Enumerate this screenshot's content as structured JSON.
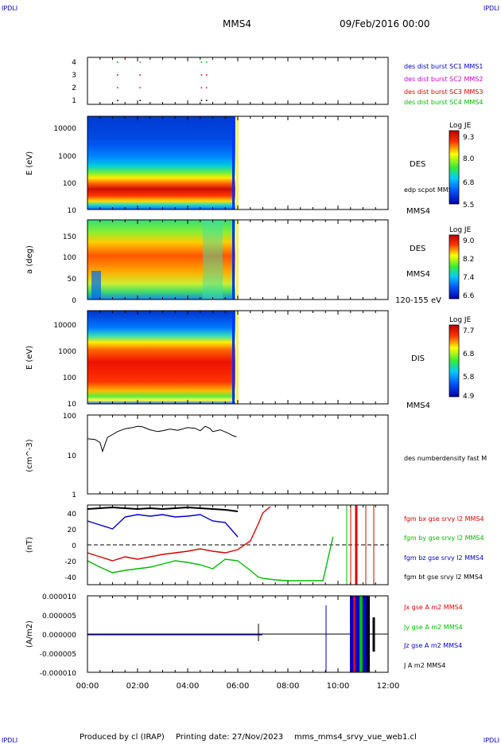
{
  "header": {
    "corner_left": "IPDLI",
    "corner_right": "IPDLI",
    "spacecraft": "MMS4",
    "date": "09/Feb/2016 00:00"
  },
  "footer": {
    "produced_by": "Produced by cl (IRAP)",
    "printing_date": "Printing date: 27/Nov/2023",
    "script_name": "mms_mms4_srvy_vue_web1.cl",
    "corner_left": "IPDLI",
    "corner_right": "IPDLI"
  },
  "colors": {
    "blue": "#0000cc",
    "magenta": "#cc00cc",
    "red": "#dd0000",
    "green": "#00bb00",
    "black": "#000000"
  },
  "chart_data": {
    "type": "multi-panel",
    "x_axis": {
      "range": [
        "00:00",
        "12:00"
      ],
      "tick_labels": [
        "00:00",
        "02:00",
        "04:00",
        "06:00",
        "08:00",
        "10:00",
        "12:00"
      ]
    },
    "panels": [
      {
        "id": "burst",
        "type": "scatter",
        "ylim": [
          0.6,
          4.4
        ],
        "y_ticks": [
          "1",
          "2",
          "3",
          "4"
        ],
        "legend": [
          {
            "name": "des dist burst SC1 MMS1",
            "color": "#0000cc"
          },
          {
            "name": "des dist burst SC2 MMS2",
            "color": "#cc00cc"
          },
          {
            "name": "des dist burst SC3 MMS3",
            "color": "#dd0000"
          },
          {
            "name": "des dist burst SC4 MMS4",
            "color": "#00bb00"
          }
        ],
        "points_hours": [
          1.2,
          2.1,
          4.55,
          4.75
        ]
      },
      {
        "id": "des_energy",
        "type": "heatmap",
        "ylabel": "E (eV)",
        "y_scale": "log",
        "ylim": [
          10,
          30000
        ],
        "y_ticks": [
          "10",
          "100",
          "1000",
          "10000"
        ],
        "side_labels": [
          "DES",
          "edp scpot MMS4",
          "MMS4"
        ],
        "colorbar": {
          "title": "Log JE",
          "ticks": [
            "9.3",
            "8.0",
            "6.8",
            "5.5"
          ],
          "range": [
            5.5,
            9.3
          ]
        }
      },
      {
        "id": "des_pitch",
        "type": "heatmap",
        "ylabel": "a (deg)",
        "ylim": [
          0,
          180
        ],
        "y_ticks": [
          "0",
          "50",
          "100",
          "150"
        ],
        "side_labels": [
          "DES",
          "MMS4",
          "120-155 eV"
        ],
        "colorbar": {
          "title": "Log JE",
          "ticks": [
            "9.0",
            "8.2",
            "7.4",
            "6.6"
          ],
          "range": [
            6.6,
            9.0
          ]
        }
      },
      {
        "id": "dis_energy",
        "type": "heatmap",
        "ylabel": "E (eV)",
        "y_scale": "log",
        "ylim": [
          10,
          30000
        ],
        "y_ticks": [
          "10",
          "100",
          "1000",
          "10000"
        ],
        "side_labels": [
          "DIS",
          "MMS4"
        ],
        "colorbar": {
          "title": "Log JE",
          "ticks": [
            "7.7",
            "6.8",
            "5.8",
            "4.9"
          ],
          "range": [
            4.9,
            7.7
          ]
        }
      },
      {
        "id": "density",
        "type": "line",
        "ylabel": "(cm^-3)",
        "y_scale": "log",
        "ylim": [
          1,
          100
        ],
        "y_ticks": [
          "1",
          "10",
          "100"
        ],
        "legend": [
          {
            "name": "des numberdensity fast M",
            "color": "#000000"
          }
        ],
        "series": [
          {
            "x": [
              0.0,
              0.3,
              0.5,
              0.6,
              0.8,
              1.0,
              1.2,
              1.5,
              1.8,
              2.0,
              2.2,
              2.5,
              2.8,
              3.0,
              3.3,
              3.6,
              4.0,
              4.3,
              4.5,
              4.7,
              4.9,
              5.0,
              5.3,
              5.6,
              5.8,
              5.95
            ],
            "y": [
              25,
              24,
              20,
              12,
              27,
              32,
              38,
              45,
              48,
              52,
              50,
              42,
              38,
              40,
              44,
              41,
              48,
              46,
              40,
              52,
              45,
              38,
              42,
              35,
              30,
              28
            ]
          }
        ]
      },
      {
        "id": "bfield",
        "type": "line",
        "ylabel": "(nT)",
        "ylim": [
          -50,
          50
        ],
        "y_ticks": [
          "-40",
          "-20",
          "0",
          "20",
          "40"
        ],
        "legend": [
          {
            "name": "fgm bx gse srvy l2 MMS4",
            "color": "#dd0000"
          },
          {
            "name": "fgm by gse srvy l2 MMS4",
            "color": "#00bb00"
          },
          {
            "name": "fgm bz gse srvy l2 MMS4",
            "color": "#0000cc"
          },
          {
            "name": "fgm bt gse srvy l2 MMS4",
            "color": "#000000"
          }
        ],
        "series": [
          {
            "name": "bx",
            "x": [
              0,
              0.5,
              1,
              1.5,
              2,
              2.5,
              3,
              3.5,
              4,
              4.5,
              5,
              5.5,
              6,
              6.5,
              6.8,
              7.0,
              7.3
            ],
            "y": [
              -10,
              -15,
              -20,
              -15,
              -18,
              -15,
              -12,
              -10,
              -8,
              -5,
              -8,
              -10,
              -6,
              5,
              25,
              40,
              48
            ]
          },
          {
            "name": "by",
            "x": [
              0,
              0.5,
              1,
              1.5,
              2,
              2.5,
              3,
              3.5,
              4,
              4.5,
              5,
              5.5,
              6,
              6.5,
              6.8,
              7.0,
              7.5,
              8.0,
              9.4,
              9.8
            ],
            "y": [
              -20,
              -28,
              -35,
              -32,
              -30,
              -28,
              -24,
              -20,
              -22,
              -25,
              -30,
              -18,
              -20,
              -32,
              -40,
              -42,
              -44,
              -45,
              -45,
              10
            ]
          },
          {
            "name": "bz",
            "x": [
              0,
              0.5,
              1,
              1.5,
              2,
              2.5,
              3,
              3.5,
              4,
              4.5,
              5,
              5.5,
              6
            ],
            "y": [
              30,
              25,
              20,
              35,
              38,
              36,
              38,
              35,
              36,
              38,
              30,
              28,
              10
            ]
          },
          {
            "name": "bt",
            "x": [
              0,
              0.5,
              1,
              1.5,
              2,
              2.5,
              3,
              3.5,
              4,
              4.5,
              5,
              5.5,
              6
            ],
            "y": [
              45,
              46,
              47,
              46,
              45,
              46,
              45,
              46,
              47,
              46,
              45,
              44,
              42
            ]
          }
        ]
      },
      {
        "id": "current",
        "type": "line",
        "ylabel": "(A/m2)",
        "ylim": [
          -1e-05,
          1e-05
        ],
        "y_ticks": [
          "-0.000010",
          "-0.000005",
          "0.000000",
          "0.000005",
          "0.000010"
        ],
        "legend": [
          {
            "name": "Jx gse A m2 MMS4",
            "color": "#dd0000"
          },
          {
            "name": "Jy gse A m2 MMS4",
            "color": "#00bb00"
          },
          {
            "name": "Jz gse A m2 MMS4",
            "color": "#0000cc"
          },
          {
            "name": "J A m2 MMS4",
            "color": "#000000"
          }
        ]
      }
    ]
  }
}
